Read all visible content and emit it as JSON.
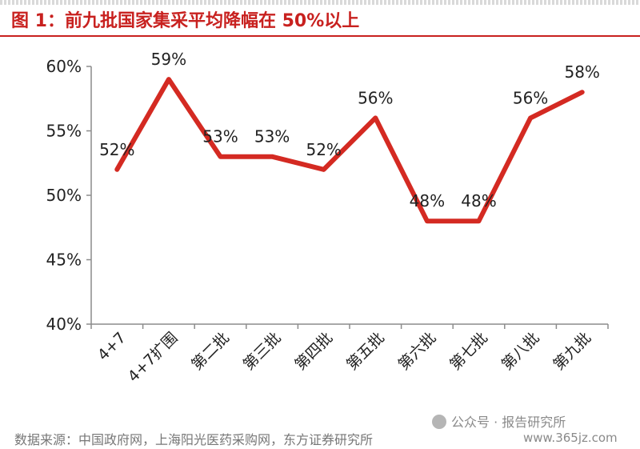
{
  "title": "图 1：前九批国家集采平均降幅在 50%以上",
  "source": "数据来源：中国政府网，上海阳光医药采购网，东方证券研究所",
  "watermark": "公众号 · 报告研究所",
  "website": "www.365jz.com",
  "colors": {
    "accent": "#c8211f",
    "line": "#d42a22"
  },
  "chart_data": {
    "type": "line",
    "categories": [
      "4+7",
      "4+7扩围",
      "第二批",
      "第三批",
      "第四批",
      "第五批",
      "第六批",
      "第七批",
      "第八批",
      "第九批"
    ],
    "values": [
      52,
      59,
      53,
      53,
      52,
      56,
      48,
      48,
      56,
      58
    ],
    "data_labels": [
      "52%",
      "59%",
      "53%",
      "53%",
      "52%",
      "56%",
      "48%",
      "48%",
      "56%",
      "58%"
    ],
    "ylim": [
      40,
      60
    ],
    "yticks": [
      40,
      45,
      50,
      55,
      60
    ],
    "ytick_labels": [
      "40%",
      "45%",
      "50%",
      "55%",
      "60%"
    ],
    "grid": false,
    "legend": "none"
  }
}
